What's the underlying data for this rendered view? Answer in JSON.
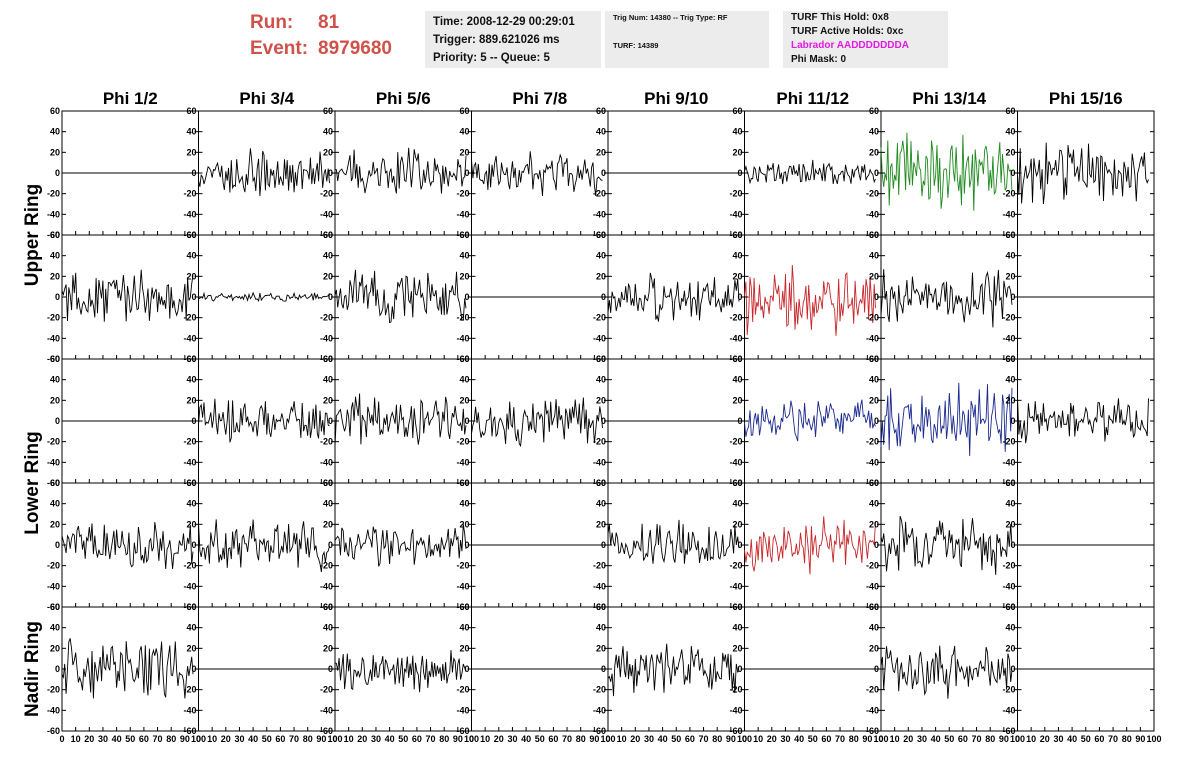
{
  "header": {
    "run_label": "Run:",
    "run_value": "81",
    "event_label": "Event:",
    "event_value": "8979680",
    "time": "Time: 2008-12-29 00:29:01",
    "trigger": "Trigger: 889.621026 ms",
    "priority": "Priority: 5 -- Queue: 5",
    "trig_num": "Trig Num: 14380 -- Trig Type: RF",
    "turf": "TURF: 14389",
    "turf_this_hold": "TURF This Hold: 0x8",
    "turf_active_holds": "TURF Active Holds: 0xc",
    "labrador": "Labrador AADDDDDDDA",
    "phi_mask": "Phi Mask: 0"
  },
  "colors": {
    "header_red": "#d0504a",
    "labrador_magenta": "#e21be0",
    "trace_black": "#000000",
    "trace_green": "#1f8a1f",
    "trace_red": "#c8262b",
    "trace_blue": "#1c2a8f"
  },
  "chart_data": {
    "type": "line",
    "columns": [
      "Phi 1/2",
      "Phi 3/4",
      "Phi 5/6",
      "Phi 7/8",
      "Phi 9/10",
      "Phi 11/12",
      "Phi 13/14",
      "Phi 15/16"
    ],
    "rows": [
      "Upper Ring",
      "Upper Ring",
      "Lower Ring",
      "Lower Ring",
      "Nadir Ring"
    ],
    "row_labels": [
      {
        "text": "Upper Ring",
        "rows": [
          0,
          1
        ]
      },
      {
        "text": "Lower Ring",
        "rows": [
          2,
          3
        ]
      },
      {
        "text": "Nadir Ring",
        "rows": [
          4,
          4
        ]
      }
    ],
    "xlim": [
      0,
      100
    ],
    "ylim": [
      -60,
      60
    ],
    "x_ticks": [
      0,
      10,
      20,
      30,
      40,
      50,
      60,
      70,
      80,
      90,
      100
    ],
    "y_ticks": [
      -60,
      -40,
      -20,
      0,
      20,
      40,
      60
    ],
    "samples": 96,
    "panels": [
      [
        {
          "flat": true
        },
        {
          "amp": 11,
          "seed": 3
        },
        {
          "amp": 11,
          "seed": 5
        },
        {
          "amp": 10,
          "seed": 7
        },
        {
          "flat": true
        },
        {
          "amp": 6,
          "seed": 9
        },
        {
          "amp": 20,
          "seed": 11,
          "color": "green"
        },
        {
          "amp": 16,
          "seed": 13
        }
      ],
      [
        {
          "amp": 13,
          "seed": 15
        },
        {
          "amp": 2,
          "seed": 17
        },
        {
          "amp": 13,
          "seed": 19
        },
        {
          "flat": true
        },
        {
          "amp": 12,
          "seed": 21
        },
        {
          "amp": 17,
          "seed": 23,
          "color": "red"
        },
        {
          "amp": 14,
          "seed": 25
        },
        {
          "flat": true
        }
      ],
      [
        {
          "flat": true
        },
        {
          "amp": 11,
          "seed": 27
        },
        {
          "amp": 12,
          "seed": 29
        },
        {
          "amp": 11,
          "seed": 31
        },
        {
          "flat": true
        },
        {
          "amp": 10,
          "seed": 33,
          "color": "blue"
        },
        {
          "amp": 17,
          "seed": 35,
          "color": "blue"
        },
        {
          "amp": 11,
          "seed": 37
        }
      ],
      [
        {
          "amp": 11,
          "seed": 39
        },
        {
          "amp": 12,
          "seed": 41
        },
        {
          "amp": 10,
          "seed": 43
        },
        {
          "flat": true
        },
        {
          "amp": 11,
          "seed": 45
        },
        {
          "amp": 13,
          "seed": 47,
          "color": "red"
        },
        {
          "amp": 13,
          "seed": 49
        },
        {
          "flat": true
        }
      ],
      [
        {
          "amp": 14,
          "seed": 51
        },
        {
          "flat": true
        },
        {
          "amp": 10,
          "seed": 53
        },
        {
          "flat": true
        },
        {
          "amp": 12,
          "seed": 55
        },
        {
          "flat": true
        },
        {
          "amp": 13,
          "seed": 57
        },
        {
          "flat": true
        }
      ]
    ]
  }
}
